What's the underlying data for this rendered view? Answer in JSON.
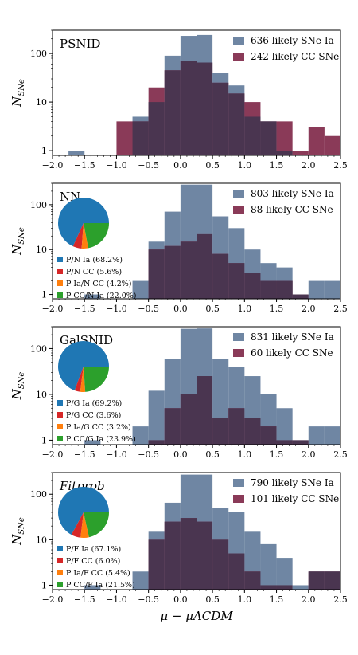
{
  "colors": {
    "ia": "#6f86a3",
    "cc": "#8a3a58",
    "overlap": "#4a3550",
    "pie": [
      "#1f77b4",
      "#d62728",
      "#ff7f0e",
      "#2ca02c"
    ]
  },
  "x_axis": {
    "label": "μ − μΛCDM",
    "ticks": [
      "−2.0",
      "−1.5",
      "−1.0",
      "−0.5",
      "0.0",
      "0.5",
      "1.0",
      "1.5",
      "2.0",
      "2.5"
    ]
  },
  "y_axis": {
    "label": "N",
    "label_sub": "SNe",
    "ticks": [
      "1",
      "10",
      "100"
    ]
  },
  "chart_data": [
    {
      "type": "bar",
      "title": "PSNID",
      "title_italic": false,
      "bin_edges": [
        -2.0,
        -1.75,
        -1.5,
        -1.25,
        -1.0,
        -0.75,
        -0.5,
        -0.25,
        0.0,
        0.25,
        0.5,
        0.75,
        1.0,
        1.25,
        1.5,
        1.75,
        2.0,
        2.25,
        2.5
      ],
      "xlim": [
        -2.0,
        2.5
      ],
      "ylim": [
        0.8,
        300
      ],
      "yscale": "log",
      "series": [
        {
          "name": "636 likely SNe Ia",
          "values": [
            0,
            1,
            0,
            0,
            0,
            5,
            10,
            90,
            230,
            240,
            40,
            22,
            5,
            4,
            1,
            0,
            0,
            0
          ]
        },
        {
          "name": "242 likely CC SNe",
          "values": [
            0,
            0,
            0,
            0,
            4,
            4,
            20,
            45,
            70,
            65,
            25,
            15,
            10,
            4,
            4,
            1,
            3,
            2
          ]
        }
      ],
      "legend": "top-right"
    },
    {
      "type": "bar",
      "title": "NN",
      "title_italic": false,
      "bin_edges": [
        -2.0,
        -1.75,
        -1.5,
        -1.25,
        -1.0,
        -0.75,
        -0.5,
        -0.25,
        0.0,
        0.25,
        0.5,
        0.75,
        1.0,
        1.25,
        1.5,
        1.75,
        2.0,
        2.25,
        2.5
      ],
      "xlim": [
        -2.0,
        2.5
      ],
      "ylim": [
        0.8,
        300
      ],
      "yscale": "log",
      "series": [
        {
          "name": "803 likely SNe Ia",
          "values": [
            0,
            0,
            1,
            0,
            0,
            2,
            15,
            70,
            280,
            280,
            55,
            30,
            10,
            5,
            4,
            1,
            2,
            2
          ]
        },
        {
          "name": "88 likely CC SNe",
          "values": [
            0,
            0,
            0,
            0,
            0,
            0,
            10,
            12,
            15,
            22,
            8,
            5,
            3,
            2,
            2,
            1,
            0,
            0
          ]
        }
      ],
      "pie": {
        "labels": [
          "P/N Ia (68.2%)",
          "P/N CC (5.6%)",
          "P Ia/N CC (4.2%)",
          "P CC/N Ia (22.0%)"
        ],
        "values": [
          68.2,
          5.6,
          4.2,
          22.0
        ]
      },
      "legend": "top-right"
    },
    {
      "type": "bar",
      "title": "GalSNID",
      "title_italic": false,
      "bin_edges": [
        -2.0,
        -1.75,
        -1.5,
        -1.25,
        -1.0,
        -0.75,
        -0.5,
        -0.25,
        0.0,
        0.25,
        0.5,
        0.75,
        1.0,
        1.25,
        1.5,
        1.75,
        2.0,
        2.25,
        2.5
      ],
      "xlim": [
        -2.0,
        2.5
      ],
      "ylim": [
        0.8,
        300
      ],
      "yscale": "log",
      "series": [
        {
          "name": "831 likely SNe Ia",
          "values": [
            0,
            0,
            1,
            0,
            0,
            2,
            12,
            60,
            270,
            275,
            60,
            40,
            25,
            10,
            5,
            1,
            2,
            2
          ]
        },
        {
          "name": "60 likely CC SNe",
          "values": [
            0,
            0,
            0,
            0,
            0,
            0,
            1,
            5,
            10,
            25,
            3,
            5,
            3,
            2,
            1,
            1,
            0,
            0
          ]
        }
      ],
      "pie": {
        "labels": [
          "P/G Ia (69.2%)",
          "P/G CC (3.6%)",
          "P Ia/G CC (3.2%)",
          "P CC/G Ia (23.9%)"
        ],
        "values": [
          69.2,
          3.6,
          3.2,
          23.9
        ]
      },
      "legend": "top-right"
    },
    {
      "type": "bar",
      "title": "Fitprob",
      "title_italic": true,
      "bin_edges": [
        -2.0,
        -1.75,
        -1.5,
        -1.25,
        -1.0,
        -0.75,
        -0.5,
        -0.25,
        0.0,
        0.25,
        0.5,
        0.75,
        1.0,
        1.25,
        1.5,
        1.75,
        2.0,
        2.25,
        2.5
      ],
      "xlim": [
        -2.0,
        2.5
      ],
      "ylim": [
        0.8,
        300
      ],
      "yscale": "log",
      "series": [
        {
          "name": "790 likely SNe Ia",
          "values": [
            0,
            0,
            1,
            0,
            0,
            2,
            15,
            65,
            270,
            270,
            50,
            40,
            15,
            8,
            4,
            1,
            2,
            2
          ]
        },
        {
          "name": "101 likely CC SNe",
          "values": [
            0,
            0,
            0,
            0,
            0,
            0,
            10,
            25,
            30,
            25,
            10,
            5,
            2,
            1,
            1,
            0,
            2,
            2
          ]
        }
      ],
      "pie": {
        "labels": [
          "P/F Ia (67.1%)",
          "P/F CC (6.0%)",
          "P Ia/F CC (5.4%)",
          "P CC/F Ia (21.5%)"
        ],
        "values": [
          67.1,
          6.0,
          5.4,
          21.5
        ]
      },
      "legend": "top-right"
    }
  ]
}
